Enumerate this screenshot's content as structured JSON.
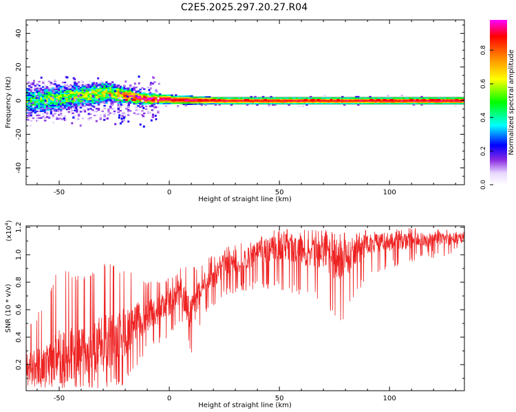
{
  "title": "C2E5.2025.297.20.27.R04",
  "chart_data": [
    {
      "type": "heatmap",
      "title": "C2E5.2025.297.20.27.R04",
      "xlabel": "Height of straight line (km)",
      "ylabel": "Frequency (Hz)",
      "xlim": [
        -65,
        134
      ],
      "ylim": [
        -50,
        48
      ],
      "xticks": [
        -50,
        0,
        50,
        100
      ],
      "yticks": [
        -40,
        -20,
        0,
        20,
        40
      ],
      "colorbar": {
        "label": "Normalized spectral amplitude",
        "range": [
          0,
          0.98
        ],
        "ticks": [
          "0.0",
          "0.2",
          "0.4",
          "0.6",
          "0.8"
        ]
      },
      "ridge_center_hz": 0,
      "band_halfwidth_hz": [
        {
          "x": -65,
          "hz": 7
        },
        {
          "x": -30,
          "hz": 6
        },
        {
          "x": -10,
          "hz": 3
        },
        {
          "x": 20,
          "hz": 2
        },
        {
          "x": 134,
          "hz": 2
        }
      ],
      "peak_amplitudes": [
        {
          "x": -62,
          "hz": 0,
          "amp": 0.45
        },
        {
          "x": -48,
          "hz": 2,
          "amp": 0.55
        },
        {
          "x": -28,
          "hz": 5,
          "amp": 0.6
        },
        {
          "x": -15,
          "hz": 2,
          "amp": 0.9
        },
        {
          "x": -10,
          "hz": 1,
          "amp": 0.95
        },
        {
          "x": 5,
          "hz": 1,
          "amp": 0.95
        },
        {
          "x": 25,
          "hz": 0,
          "amp": 0.9
        },
        {
          "x": 75,
          "hz": 0,
          "amp": 0.9
        },
        {
          "x": 130,
          "hz": 0,
          "amp": 0.95
        }
      ]
    },
    {
      "type": "line",
      "xlabel": "Height of straight line (km)",
      "ylabel": "SNR (10 * v/v)",
      "yscale_label": "(x10⁴)",
      "yscale_base": "(x10",
      "yscale_exp": "4",
      "xlim": [
        -65,
        134
      ],
      "ylim": [
        0.01,
        1.21
      ],
      "xticks": [
        -50,
        0,
        50,
        100
      ],
      "yticks": [
        "0.2",
        "0.4",
        "0.6",
        "0.8",
        "1.0",
        "1.2"
      ],
      "series": [
        {
          "name": "SNR",
          "color": "#ee2222",
          "envelope": [
            {
              "x": -65,
              "base": 0.18,
              "min": 0.01,
              "max": 0.45
            },
            {
              "x": -55,
              "base": 0.2,
              "min": 0.02,
              "max": 0.7
            },
            {
              "x": -50,
              "base": 0.25,
              "min": 0.03,
              "max": 0.93
            },
            {
              "x": -40,
              "base": 0.3,
              "min": 0.02,
              "max": 0.85
            },
            {
              "x": -30,
              "base": 0.35,
              "min": 0.03,
              "max": 0.95
            },
            {
              "x": -20,
              "base": 0.45,
              "min": 0.05,
              "max": 0.9
            },
            {
              "x": -10,
              "base": 0.55,
              "min": 0.3,
              "max": 0.8
            },
            {
              "x": 0,
              "base": 0.65,
              "min": 0.4,
              "max": 0.85
            },
            {
              "x": 5,
              "base": 0.75,
              "min": 0.5,
              "max": 0.92
            },
            {
              "x": 10,
              "base": 0.55,
              "min": 0.28,
              "max": 0.9
            },
            {
              "x": 15,
              "base": 0.78,
              "min": 0.55,
              "max": 0.95
            },
            {
              "x": 25,
              "base": 0.9,
              "min": 0.7,
              "max": 1.05
            },
            {
              "x": 40,
              "base": 1.0,
              "min": 0.75,
              "max": 1.12
            },
            {
              "x": 50,
              "base": 1.06,
              "min": 0.75,
              "max": 1.2
            },
            {
              "x": 70,
              "base": 1.0,
              "min": 0.65,
              "max": 1.18
            },
            {
              "x": 78,
              "base": 0.95,
              "min": 0.48,
              "max": 1.18
            },
            {
              "x": 90,
              "base": 1.08,
              "min": 0.85,
              "max": 1.18
            },
            {
              "x": 110,
              "base": 1.1,
              "min": 0.95,
              "max": 1.2
            },
            {
              "x": 134,
              "base": 1.12,
              "min": 1.0,
              "max": 1.18
            }
          ]
        }
      ]
    }
  ]
}
